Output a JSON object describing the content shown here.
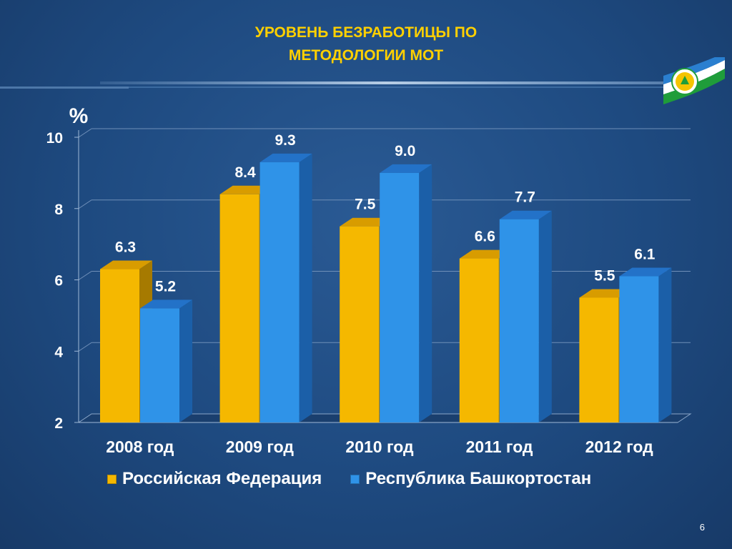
{
  "title_lines": [
    "УРОВЕНЬ БЕЗРАБОТИЦЫ ПО",
    "МЕТОДОЛОГИИ МОТ"
  ],
  "page_number": "6",
  "colors": {
    "russia_front": "#f5b800",
    "russia_side": "#a67a00",
    "bashkortostan_front": "#2f93e8",
    "bashkortostan_side": "#1b5fa8",
    "title": "#ffd000",
    "text": "#ffffff"
  },
  "chart_data": {
    "type": "bar",
    "ylabel": "%",
    "ylim": [
      2,
      10
    ],
    "yticks": [
      2,
      4,
      6,
      8,
      10
    ],
    "grid": true,
    "legend_position": "bottom",
    "categories": [
      "2008 год",
      "2009 год",
      "2010 год",
      "2011 год",
      "2012 год"
    ],
    "series": [
      {
        "name": "Российская Федерация",
        "values": [
          6.3,
          8.4,
          7.5,
          6.6,
          5.5
        ],
        "labels": [
          "6.3",
          "8.4",
          "7.5",
          "6.6",
          "5.5"
        ]
      },
      {
        "name": "Республика Башкортостан",
        "values": [
          5.2,
          9.3,
          9.0,
          7.7,
          6.1
        ],
        "labels": [
          "5.2",
          "9.3",
          "9.0",
          "7.7",
          "6.1"
        ]
      }
    ]
  }
}
